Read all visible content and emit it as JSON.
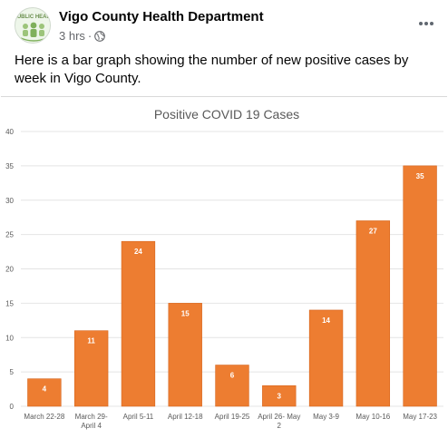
{
  "post": {
    "page_name": "Vigo County Health Department",
    "avatar_text": "UBLIC HEAL",
    "time": "3 hrs",
    "separator": "·",
    "privacy_icon": "globe-icon",
    "more_icon": "more-horizontal-icon",
    "text": "Here is a bar graph showing the number of new positive cases by week in Vigo County."
  },
  "colors": {
    "bar": "#ed7d31",
    "bar_dark": "#d6651d",
    "title": "#595959",
    "axis_text": "#595959",
    "grid": "#e4e4e4"
  },
  "chart_data": {
    "type": "bar",
    "title": "Positive COVID 19 Cases",
    "xlabel": "",
    "ylabel": "",
    "categories": [
      "March 22-28",
      "March 29-April 4",
      "April 5-11",
      "April 12-18",
      "April 19-25",
      "April 26- May 2",
      "May 3-9",
      "May 10-16",
      "May 17-23"
    ],
    "category_lines": [
      [
        "March 22-28"
      ],
      [
        "March 29-",
        "April 4"
      ],
      [
        "April 5-11"
      ],
      [
        "April 12-18"
      ],
      [
        "April 19-25"
      ],
      [
        "April 26- May",
        "2"
      ],
      [
        "May 3-9"
      ],
      [
        "May 10-16"
      ],
      [
        "May 17-23"
      ]
    ],
    "values": [
      4,
      11,
      24,
      15,
      6,
      3,
      14,
      27,
      35
    ],
    "ylim": [
      0,
      40
    ],
    "yticks": [
      0,
      5,
      10,
      15,
      20,
      25,
      30,
      35,
      40
    ],
    "data_labels": true,
    "grid": true,
    "legend": false
  }
}
